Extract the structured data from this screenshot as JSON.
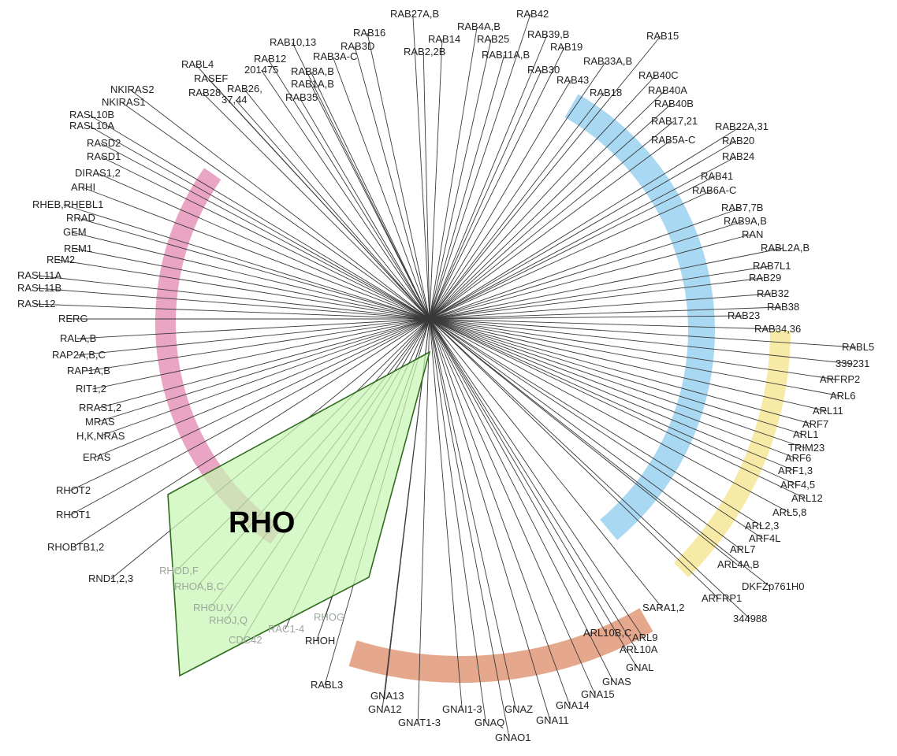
{
  "diagram": {
    "type": "circular-phylogenetic-tree",
    "highlight_label": "RHO",
    "colors": {
      "rab_arc": "#a9d8f2",
      "ras_arc": "#eaa4c4",
      "arf_arc": "#f7eaa6",
      "galpha_arc": "#e6a88c",
      "rho_polygon_fill": "#c8f5b4",
      "rho_polygon_stroke": "#2f6b1e",
      "branch": "#3a3a3a",
      "label": "#222222"
    },
    "leaves": [
      {
        "label": "RAB27A,B",
        "faded": false
      },
      {
        "label": "RAB4A,B",
        "faded": false
      },
      {
        "label": "RAB42",
        "faded": false
      },
      {
        "label": "RAB16",
        "faded": false
      },
      {
        "label": "RAB14",
        "faded": false
      },
      {
        "label": "RAB25",
        "faded": false
      },
      {
        "label": "RAB39,B",
        "faded": false
      },
      {
        "label": "RAB10,13",
        "faded": false
      },
      {
        "label": "RAB3D",
        "faded": false
      },
      {
        "label": "RAB2,2B",
        "faded": false
      },
      {
        "label": "RAB19",
        "faded": false
      },
      {
        "label": "RAB15",
        "faded": false
      },
      {
        "label": "RAB12",
        "faded": false
      },
      {
        "label": "RAB3A-C",
        "faded": false
      },
      {
        "label": "RAB11A,B",
        "faded": false
      },
      {
        "label": "RABL4",
        "faded": false
      },
      {
        "label": "RAB33A,B",
        "faded": false
      },
      {
        "label": "201475",
        "faded": false
      },
      {
        "label": "RAB8A,B",
        "faded": false
      },
      {
        "label": "RAB30",
        "faded": false
      },
      {
        "label": "RAB40C",
        "faded": false
      },
      {
        "label": "RASEF",
        "faded": false
      },
      {
        "label": "RAB1A,B",
        "faded": false
      },
      {
        "label": "RAB43",
        "faded": false
      },
      {
        "label": "NKIRAS2",
        "faded": false
      },
      {
        "label": "RAB26,",
        "faded": false
      },
      {
        "label": "RAB40A",
        "faded": false
      },
      {
        "label": "RAB28",
        "faded": false
      },
      {
        "label": "37,44",
        "faded": false
      },
      {
        "label": "RAB35",
        "faded": false
      },
      {
        "label": "RAB18",
        "faded": false
      },
      {
        "label": "NKIRAS1",
        "faded": false
      },
      {
        "label": "RAB40B",
        "faded": false
      },
      {
        "label": "RASL10B",
        "faded": false
      },
      {
        "label": "RAB17,21",
        "faded": false
      },
      {
        "label": "RAB22A,31",
        "faded": false
      },
      {
        "label": "RASL10A",
        "faded": false
      },
      {
        "label": "RAB5A-C",
        "faded": false
      },
      {
        "label": "RAB20",
        "faded": false
      },
      {
        "label": "RASD2",
        "faded": false
      },
      {
        "label": "RASD1",
        "faded": false
      },
      {
        "label": "RAB24",
        "faded": false
      },
      {
        "label": "DIRAS1,2",
        "faded": false
      },
      {
        "label": "RAB41",
        "faded": false
      },
      {
        "label": "ARHI",
        "faded": false
      },
      {
        "label": "RAB6A-C",
        "faded": false
      },
      {
        "label": "RHEB,RHEBL1",
        "faded": false
      },
      {
        "label": "RAB7,7B",
        "faded": false
      },
      {
        "label": "RRAD",
        "faded": false
      },
      {
        "label": "RAB9A,B",
        "faded": false
      },
      {
        "label": "GEM",
        "faded": false
      },
      {
        "label": "RAN",
        "faded": false
      },
      {
        "label": "REM1",
        "faded": false
      },
      {
        "label": "RABL2A,B",
        "faded": false
      },
      {
        "label": "REM2",
        "faded": false
      },
      {
        "label": "RAB7L1",
        "faded": false
      },
      {
        "label": "RASL11A",
        "faded": false
      },
      {
        "label": "RAB29",
        "faded": false
      },
      {
        "label": "RASL11B",
        "faded": false
      },
      {
        "label": "RAB32",
        "faded": false
      },
      {
        "label": "RASL12",
        "faded": false
      },
      {
        "label": "RAB38",
        "faded": false
      },
      {
        "label": "RERG",
        "faded": false
      },
      {
        "label": "RAB23",
        "faded": false
      },
      {
        "label": "RAB34,36",
        "faded": false
      },
      {
        "label": "RALA,B",
        "faded": false
      },
      {
        "label": "RABL5",
        "faded": false
      },
      {
        "label": "RAP2A,B,C",
        "faded": false
      },
      {
        "label": "339231",
        "faded": false
      },
      {
        "label": "RAP1A,B",
        "faded": false
      },
      {
        "label": "ARFRP2",
        "faded": false
      },
      {
        "label": "RIT1,2",
        "faded": false
      },
      {
        "label": "ARL6",
        "faded": false
      },
      {
        "label": "RRAS1,2",
        "faded": false
      },
      {
        "label": "ARL11",
        "faded": false
      },
      {
        "label": "MRAS",
        "faded": false
      },
      {
        "label": "ARF7",
        "faded": false
      },
      {
        "label": "H,K,NRAS",
        "faded": false
      },
      {
        "label": "ARL1",
        "faded": false
      },
      {
        "label": "TRIM23",
        "faded": false
      },
      {
        "label": "ERAS",
        "faded": false
      },
      {
        "label": "ARF6",
        "faded": false
      },
      {
        "label": "ARF1,3",
        "faded": false
      },
      {
        "label": "RHOT2",
        "faded": false
      },
      {
        "label": "ARF4,5",
        "faded": false
      },
      {
        "label": "ARL12",
        "faded": false
      },
      {
        "label": "RHOT1",
        "faded": false
      },
      {
        "label": "ARL5,8",
        "faded": false
      },
      {
        "label": "ARL2,3",
        "faded": false
      },
      {
        "label": "RHOBTB1,2",
        "faded": false
      },
      {
        "label": "ARF4L",
        "faded": false
      },
      {
        "label": "ARL7",
        "faded": false
      },
      {
        "label": "ARL4A,B",
        "faded": false
      },
      {
        "label": "RHOD,F",
        "faded": true
      },
      {
        "label": "RND1,2,3",
        "faded": false
      },
      {
        "label": "RHOA,B,C",
        "faded": true
      },
      {
        "label": "DKFZp761H0",
        "faded": false
      },
      {
        "label": "ARFRP1",
        "faded": false
      },
      {
        "label": "RHOU,V",
        "faded": true
      },
      {
        "label": "SARA1,2",
        "faded": false
      },
      {
        "label": "RHOJ,Q",
        "faded": true
      },
      {
        "label": "RHOG",
        "faded": true
      },
      {
        "label": "344988",
        "faded": false
      },
      {
        "label": "RAC1-4",
        "faded": true
      },
      {
        "label": "ARL10B,C",
        "faded": false
      },
      {
        "label": "CDC42",
        "faded": true
      },
      {
        "label": "RHOH",
        "faded": false
      },
      {
        "label": "ARL9",
        "faded": false
      },
      {
        "label": "ARL10A",
        "faded": false
      },
      {
        "label": "GNAL",
        "faded": false
      },
      {
        "label": "RABL3",
        "faded": false
      },
      {
        "label": "GNAS",
        "faded": false
      },
      {
        "label": "GNA13",
        "faded": false
      },
      {
        "label": "GNA15",
        "faded": false
      },
      {
        "label": "GNA12",
        "faded": false
      },
      {
        "label": "GNAI1-3",
        "faded": false
      },
      {
        "label": "GNAZ",
        "faded": false
      },
      {
        "label": "GNA14",
        "faded": false
      },
      {
        "label": "GNAT1-3",
        "faded": false
      },
      {
        "label": "GNAQ",
        "faded": false
      },
      {
        "label": "GNA11",
        "faded": false
      },
      {
        "label": "GNAO1",
        "faded": false
      }
    ]
  }
}
